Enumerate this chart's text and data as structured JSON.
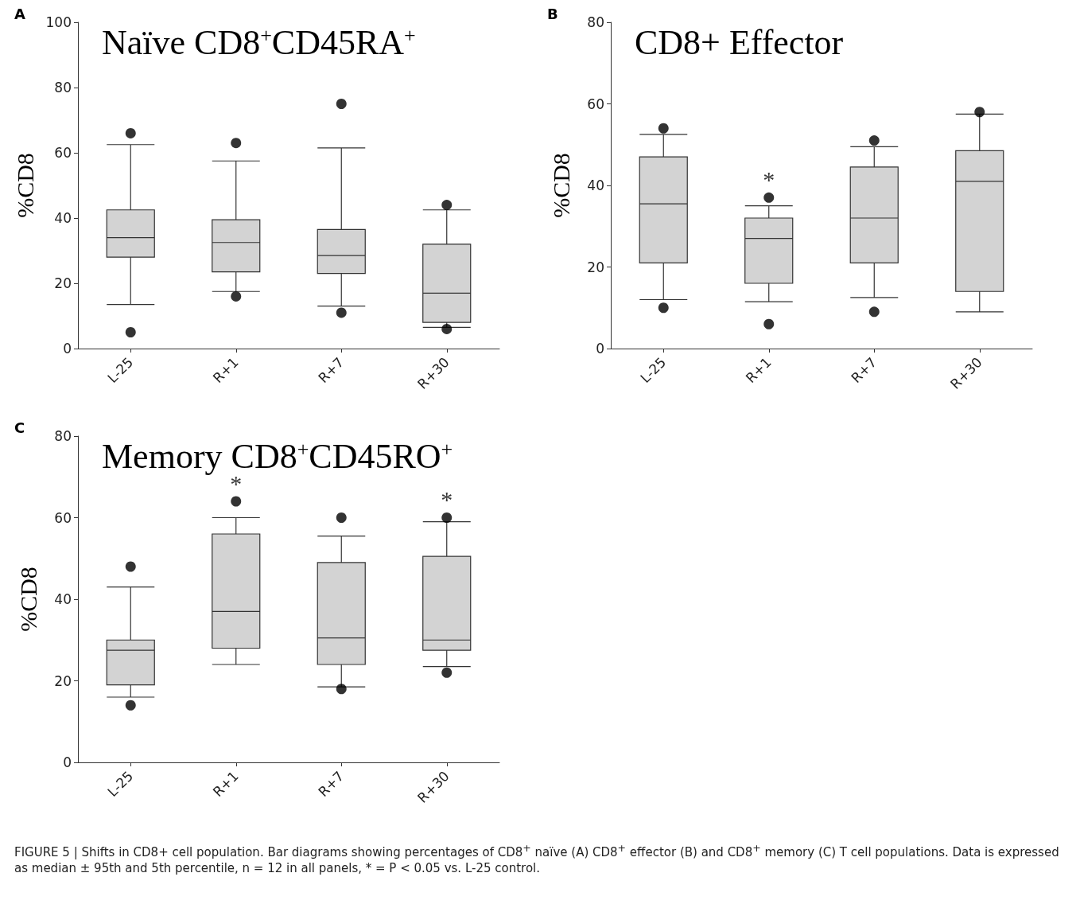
{
  "chart_data": [
    {
      "type": "box",
      "title": "Naïve CD8$^{+}$CD45RA$^{+}$",
      "ylabel": "%CD8",
      "categories": [
        "L-25",
        "R+1",
        "R+7",
        "R+30"
      ],
      "color": "#d3d3d3",
      "ylim": [
        0,
        100
      ],
      "yticks": [
        0,
        20,
        40,
        60,
        80,
        100
      ],
      "grid": false,
      "annotations": [
        "A"
      ],
      "boxes": [
        {
          "low": 13.5,
          "q1": 28,
          "median": 34,
          "q3": 42.5,
          "high": 62.5,
          "outliers": [
            66,
            5
          ]
        },
        {
          "low": 17.5,
          "q1": 23.5,
          "median": 32.5,
          "q3": 39.5,
          "high": 57.5,
          "outliers": [
            63,
            16
          ]
        },
        {
          "low": 13,
          "q1": 23,
          "median": 28.5,
          "q3": 36.5,
          "high": 61.5,
          "outliers": [
            75,
            11
          ]
        },
        {
          "low": 6.5,
          "q1": 8,
          "median": 17,
          "q3": 32,
          "high": 42.5,
          "outliers": [
            44,
            6
          ]
        }
      ]
    },
    {
      "type": "box",
      "title": "CD8+ Effector",
      "ylabel": "%CD8",
      "categories": [
        "L-25",
        "R+1",
        "R+7",
        "R+30"
      ],
      "color": "#d3d3d3",
      "ylim": [
        0,
        80
      ],
      "yticks": [
        0,
        20,
        40,
        60,
        80
      ],
      "grid": false,
      "annotations": [
        "B",
        {
          "text": "*",
          "x": "R+1",
          "y": 35
        }
      ],
      "boxes": [
        {
          "low": 12,
          "q1": 21,
          "median": 35.5,
          "q3": 47,
          "high": 52.5,
          "outliers": [
            54,
            10
          ]
        },
        {
          "low": 11.5,
          "q1": 16,
          "median": 27,
          "q3": 32,
          "high": 35,
          "outliers": [
            37,
            6
          ]
        },
        {
          "low": 12.5,
          "q1": 21,
          "median": 32,
          "q3": 44.5,
          "high": 49.5,
          "outliers": [
            51,
            9
          ]
        },
        {
          "low": 9,
          "q1": 14,
          "median": 41,
          "q3": 48.5,
          "high": 57.5,
          "outliers": [
            58
          ]
        }
      ]
    },
    {
      "type": "box",
      "title": "Memory CD8$^{+}$CD45RO$^{+}$",
      "ylabel": "%CD8",
      "categories": [
        "L-25",
        "R+1",
        "R+7",
        "R+30"
      ],
      "color": "#d3d3d3",
      "ylim": [
        0,
        80
      ],
      "yticks": [
        0,
        20,
        40,
        60,
        80
      ],
      "grid": false,
      "annotations": [
        "C",
        {
          "text": "*",
          "x": "R+1",
          "y": 60
        },
        {
          "text": "*",
          "x": "R+30",
          "y": 59
        },
        "FIGURE 5 | Shifts in CD8+ cell population. Bar diagrams showing percentages of CD8$^{+}$ naïve (A) CD8$^{+}$ effector (B) and CD8$^{+}$ memory (C) T cell populations. Data is expressed as median ± 95th and 5th percentile, n = 12 in all panels, * = P < 0.05 vs. L-25 control."
      ],
      "boxes": [
        {
          "low": 16,
          "q1": 19,
          "median": 27.5,
          "q3": 30,
          "high": 43,
          "outliers": [
            48,
            14
          ]
        },
        {
          "low": 24,
          "q1": 28,
          "median": 37,
          "q3": 56,
          "high": 60,
          "outliers": [
            64
          ]
        },
        {
          "low": 18.5,
          "q1": 24,
          "median": 30.5,
          "q3": 49,
          "high": 55.5,
          "outliers": [
            60,
            18
          ]
        },
        {
          "low": 23.5,
          "q1": 27.5,
          "median": 30,
          "q3": 50.5,
          "high": 59,
          "outliers": [
            60,
            22
          ]
        }
      ]
    }
  ]
}
